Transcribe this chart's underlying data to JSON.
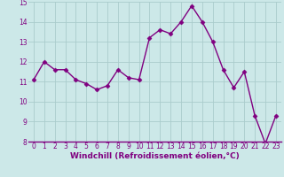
{
  "x": [
    0,
    1,
    2,
    3,
    4,
    5,
    6,
    7,
    8,
    9,
    10,
    11,
    12,
    13,
    14,
    15,
    16,
    17,
    18,
    19,
    20,
    21,
    22,
    23
  ],
  "y": [
    11.1,
    12.0,
    11.6,
    11.6,
    11.1,
    10.9,
    10.6,
    10.8,
    11.6,
    11.2,
    11.1,
    13.2,
    13.6,
    13.4,
    14.0,
    14.8,
    14.0,
    13.0,
    11.6,
    10.7,
    11.5,
    9.3,
    7.9,
    9.3
  ],
  "line_color": "#800080",
  "marker": "D",
  "marker_size": 2.5,
  "bg_color": "#cce8e8",
  "grid_color": "#aacccc",
  "xlabel": "Windchill (Refroidissement éolien,°C)",
  "xlabel_color": "#800080",
  "tick_color": "#800080",
  "ylim": [
    8,
    15
  ],
  "xlim": [
    -0.5,
    23.5
  ],
  "yticks": [
    8,
    9,
    10,
    11,
    12,
    13,
    14,
    15
  ],
  "xticks": [
    0,
    1,
    2,
    3,
    4,
    5,
    6,
    7,
    8,
    9,
    10,
    11,
    12,
    13,
    14,
    15,
    16,
    17,
    18,
    19,
    20,
    21,
    22,
    23
  ],
  "tick_fontsize": 5.5,
  "xlabel_fontsize": 6.5,
  "linewidth": 1.0
}
